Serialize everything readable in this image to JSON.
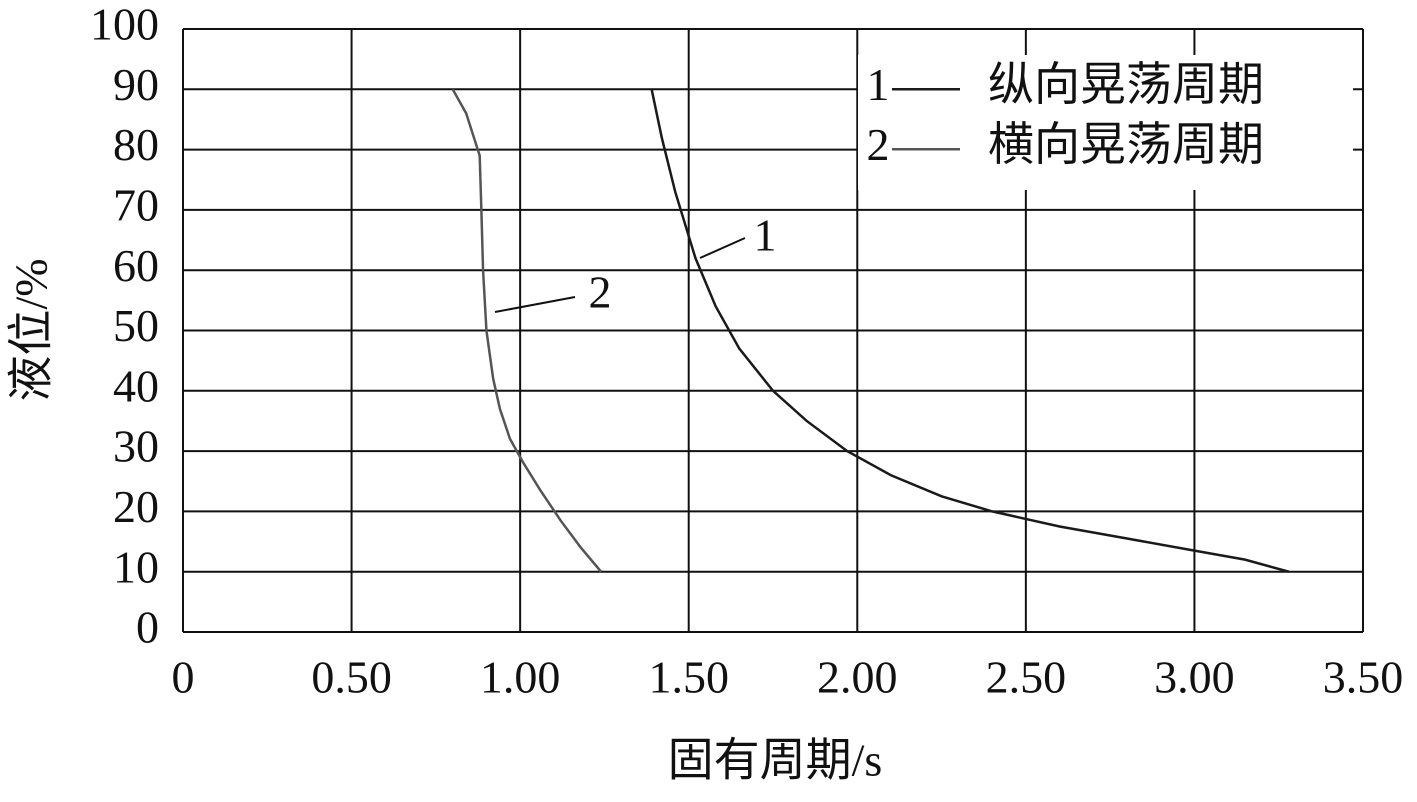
{
  "chart_data": {
    "type": "line",
    "xlabel": "固有周期/s",
    "ylabel": "液位/%",
    "xlim": [
      0,
      3.5
    ],
    "ylim": [
      0,
      100
    ],
    "xticks": [
      0,
      {
        "value": 0.5,
        "label": "0.50"
      },
      {
        "value": 1,
        "label": "1.00"
      },
      {
        "value": 1.5,
        "label": "1.50"
      },
      {
        "value": 2,
        "label": "2.00"
      },
      {
        "value": 2.5,
        "label": "2.50"
      },
      {
        "value": 3,
        "label": "3.00"
      },
      {
        "value": 3.5,
        "label": "3.50"
      }
    ],
    "yticks": [
      0,
      10,
      20,
      30,
      40,
      50,
      60,
      70,
      80,
      90,
      100
    ],
    "grid": true,
    "legend": "upper right",
    "series": [
      {
        "name": "纵向晃荡周期",
        "label": "1",
        "color": "#1a1a1a",
        "x": [
          1.39,
          1.42,
          1.46,
          1.52,
          1.58,
          1.65,
          1.75,
          1.85,
          1.97,
          2.1,
          2.25,
          2.4,
          2.6,
          2.8,
          3.0,
          3.15,
          3.28
        ],
        "values": [
          90,
          82,
          73,
          62,
          54,
          47,
          40,
          35,
          30,
          26,
          22.5,
          20,
          17.5,
          15.5,
          13.5,
          12,
          10
        ]
      },
      {
        "name": "横向晃荡周期",
        "label": "2",
        "color": "#555555",
        "x": [
          0.8,
          0.84,
          0.88,
          0.885,
          0.89,
          0.9,
          0.92,
          0.94,
          0.97,
          1.01,
          1.06,
          1.12,
          1.18,
          1.24
        ],
        "values": [
          90,
          86,
          79,
          70,
          60,
          50,
          42,
          37,
          32,
          28,
          23.5,
          18.5,
          14,
          10
        ]
      }
    ]
  }
}
